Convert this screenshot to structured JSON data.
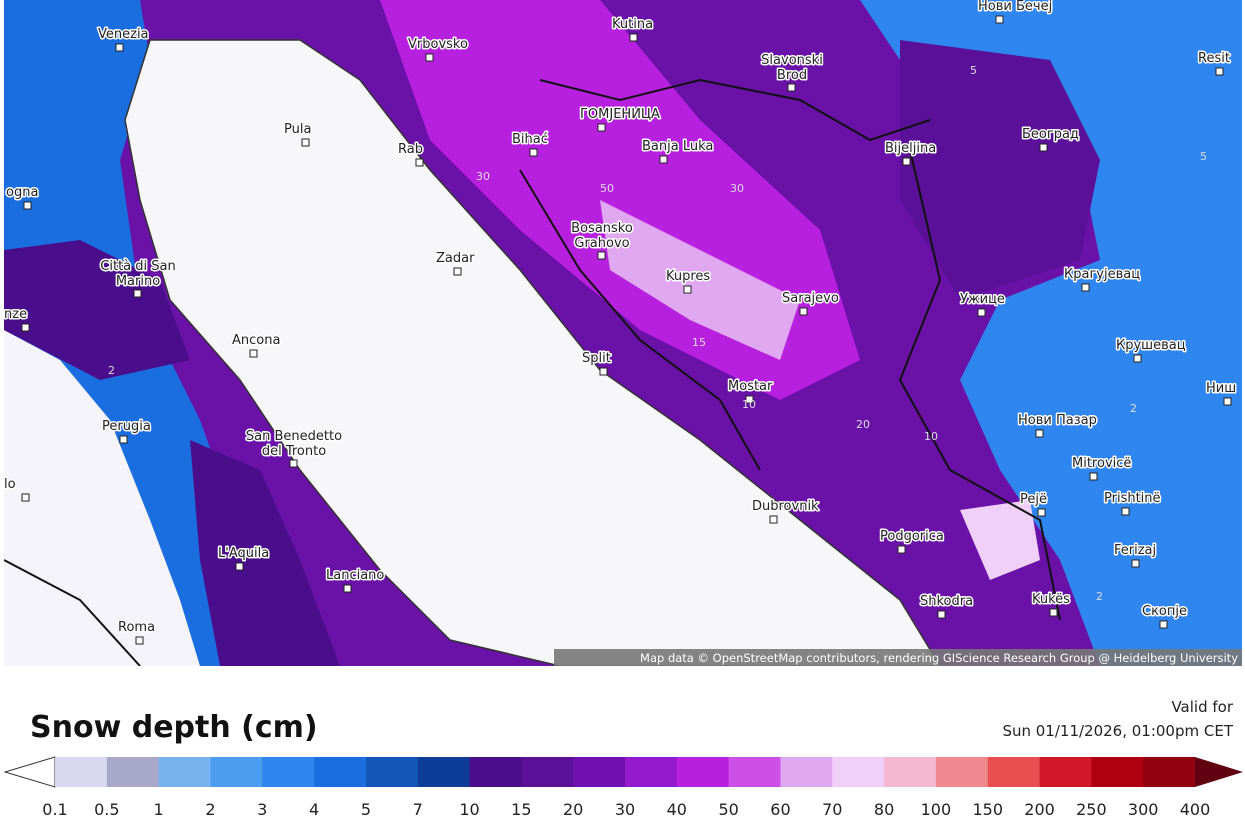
{
  "map": {
    "cities": [
      "Venezia",
      "Vrbovsko",
      "Kutina",
      "Нови Бечеј",
      "Resit",
      "Slavonski Brod",
      "Pula",
      "Bihać",
      "ГОМЈЕНИЦА",
      "Banja Luka",
      "Rab",
      "Bijeljina",
      "Београд",
      "ogna",
      "Bosansko Grahovo",
      "Zadar",
      "Città di San Marino",
      "Kupres",
      "Sarajevo",
      "Ужице",
      "Крагујевац",
      "nze",
      "Ancona",
      "Крушевац",
      "Split",
      "Mostar",
      "Ниш",
      "Perugia",
      "Нови Пазар",
      "San Benedetto del Tronto",
      "Mitrovicë",
      "lo",
      "Pejë",
      "Prishtinë",
      "Dubrovnik",
      "Podgorica",
      "Ferizaj",
      "L'Aquila",
      "Lanciano",
      "Shkodra",
      "Kukës",
      "Скопје",
      "Roma"
    ],
    "contours": [
      "30",
      "50",
      "30",
      "15",
      "10",
      "10",
      "20",
      "2",
      "5",
      "2",
      "2",
      "5"
    ],
    "attribution": "Map data © OpenStreetMap contributors, rendering GIScience Research Group @ Heidelberg University"
  },
  "legend": {
    "title": "Snow depth (cm)",
    "valid_label": "Valid for",
    "valid_time": "Sun 01/11/2026, 01:00pm CET",
    "labels": [
      "0.1",
      "0.5",
      "1",
      "2",
      "3",
      "4",
      "5",
      "7",
      "10",
      "15",
      "20",
      "30",
      "40",
      "50",
      "60",
      "70",
      "80",
      "100",
      "150",
      "200",
      "250",
      "300",
      "400"
    ],
    "colors": [
      "#d8d8f0",
      "#a8a8c8",
      "#7ab4f0",
      "#4c9cf0",
      "#2f86ee",
      "#1a6ee0",
      "#1256b8",
      "#0c3c98",
      "#4a0d8c",
      "#5a1098",
      "#7010b0",
      "#9418cc",
      "#b820e0",
      "#cc50e8",
      "#e0a8f0",
      "#f0d0f8",
      "#f4b8d0",
      "#f08890",
      "#e85050",
      "#d01828",
      "#b00010",
      "#900010"
    ]
  }
}
